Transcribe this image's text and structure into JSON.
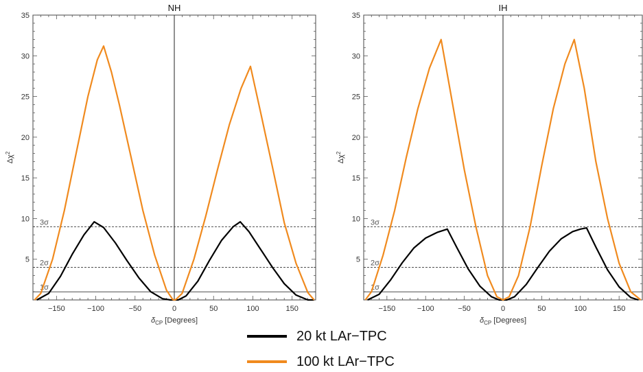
{
  "chart_data": [
    {
      "type": "line",
      "title": "NH",
      "xlabel": "δ",
      "xlabel_sub": "CP",
      "xlabel_unit": " [Degrees]",
      "ylabel": "Δχ",
      "ylabel_sup": "2",
      "xlim": [
        -180,
        180
      ],
      "ylim": [
        0,
        35
      ],
      "x_ticks": [
        -150,
        -100,
        -50,
        0,
        50,
        100,
        150
      ],
      "x_tick_labels": [
        "−150",
        "−100",
        "−50",
        "0",
        "50",
        "100",
        "150"
      ],
      "y_ticks": [
        5,
        10,
        15,
        20,
        25,
        30,
        35
      ],
      "y_tick_labels": [
        "5",
        "10",
        "15",
        "20",
        "25",
        "30",
        "35"
      ],
      "reference_lines": [
        {
          "y": 1,
          "label": "1σ",
          "style": "solid"
        },
        {
          "y": 4,
          "label": "2σ",
          "style": "dashed"
        },
        {
          "y": 9,
          "label": "3σ",
          "style": "dashed"
        }
      ],
      "series": [
        {
          "name": "20 kt LAr−TPC",
          "color": "#000000",
          "x": [
            -175,
            -160,
            -145,
            -130,
            -115,
            -102,
            -90,
            -75,
            -60,
            -45,
            -30,
            -15,
            -5,
            0,
            5,
            15,
            30,
            45,
            60,
            75,
            84,
            95,
            110,
            125,
            140,
            155,
            170,
            178
          ],
          "y": [
            0,
            0.8,
            2.9,
            5.6,
            8.0,
            9.6,
            8.9,
            7.0,
            4.8,
            2.7,
            1.0,
            0.15,
            0.0,
            0,
            0.0,
            0.5,
            2.3,
            4.9,
            7.3,
            9.0,
            9.6,
            8.4,
            6.2,
            4.0,
            2.0,
            0.6,
            0.0,
            0
          ],
          "line_style": "solid"
        },
        {
          "name": "100 kt LAr−TPC",
          "color": "#f08a1e",
          "x": [
            -178,
            -170,
            -155,
            -140,
            -125,
            -110,
            -98,
            -90,
            -80,
            -70,
            -55,
            -40,
            -25,
            -10,
            -2,
            0,
            2,
            10,
            25,
            40,
            55,
            70,
            85,
            97,
            110,
            125,
            140,
            155,
            170,
            178
          ],
          "y": [
            0,
            0.8,
            5.0,
            11.0,
            18.0,
            25.0,
            29.5,
            31.2,
            28.0,
            24.0,
            17.5,
            11.0,
            5.5,
            1.2,
            0.05,
            0,
            0.05,
            0.8,
            5.0,
            10.3,
            16.0,
            21.5,
            26.0,
            28.7,
            23.0,
            16.3,
            9.5,
            4.5,
            0.9,
            0
          ]
        }
      ]
    },
    {
      "type": "line",
      "title": "IH",
      "xlabel": "δ",
      "xlabel_sub": "CP",
      "xlabel_unit": " [Degrees]",
      "ylabel": "Δχ",
      "ylabel_sup": "2",
      "xlim": [
        -180,
        180
      ],
      "ylim": [
        0,
        35
      ],
      "x_ticks": [
        -150,
        -100,
        -50,
        0,
        50,
        100,
        150
      ],
      "x_tick_labels": [
        "−150",
        "−100",
        "−50",
        "0",
        "50",
        "100",
        "150"
      ],
      "y_ticks": [
        5,
        10,
        15,
        20,
        25,
        30,
        35
      ],
      "y_tick_labels": [
        "5",
        "10",
        "15",
        "20",
        "25",
        "30",
        "35"
      ],
      "reference_lines": [
        {
          "y": 1,
          "label": "1σ",
          "style": "solid"
        },
        {
          "y": 4,
          "label": "2σ",
          "style": "dashed"
        },
        {
          "y": 9,
          "label": "3σ",
          "style": "dashed"
        }
      ],
      "series": [
        {
          "name": "20 kt LAr−TPC",
          "color": "#000000",
          "x": [
            -175,
            -160,
            -145,
            -130,
            -115,
            -100,
            -85,
            -72,
            -60,
            -45,
            -30,
            -15,
            -5,
            0,
            5,
            15,
            30,
            45,
            60,
            75,
            90,
            100,
            108,
            120,
            135,
            150,
            165,
            175
          ],
          "y": [
            0,
            0.7,
            2.5,
            4.6,
            6.4,
            7.6,
            8.3,
            8.7,
            6.5,
            3.8,
            1.7,
            0.4,
            0.0,
            0,
            0.0,
            0.4,
            1.9,
            4.0,
            6.0,
            7.5,
            8.4,
            8.7,
            8.85,
            6.5,
            3.7,
            1.6,
            0.3,
            0
          ],
          "line_style": "solid"
        },
        {
          "name": "100 kt LAr−TPC",
          "color": "#f08a1e",
          "x": [
            -178,
            -170,
            -155,
            -140,
            -125,
            -110,
            -95,
            -80,
            -65,
            -50,
            -35,
            -20,
            -8,
            0,
            8,
            20,
            35,
            50,
            65,
            80,
            92,
            105,
            120,
            135,
            150,
            165,
            178
          ],
          "y": [
            0,
            1.0,
            5.5,
            11.0,
            17.5,
            23.5,
            28.5,
            32.0,
            24.0,
            16.0,
            9.0,
            3.0,
            0.4,
            0,
            0.4,
            3.0,
            9.0,
            16.5,
            23.5,
            29.0,
            32.0,
            26.0,
            17.0,
            10.0,
            4.5,
            1.0,
            0
          ]
        }
      ]
    }
  ],
  "legend": {
    "items": [
      {
        "label": "20 kt LAr−TPC",
        "color": "#000000"
      },
      {
        "label": "100 kt LAr−TPC",
        "color": "#f08a1e"
      }
    ]
  }
}
